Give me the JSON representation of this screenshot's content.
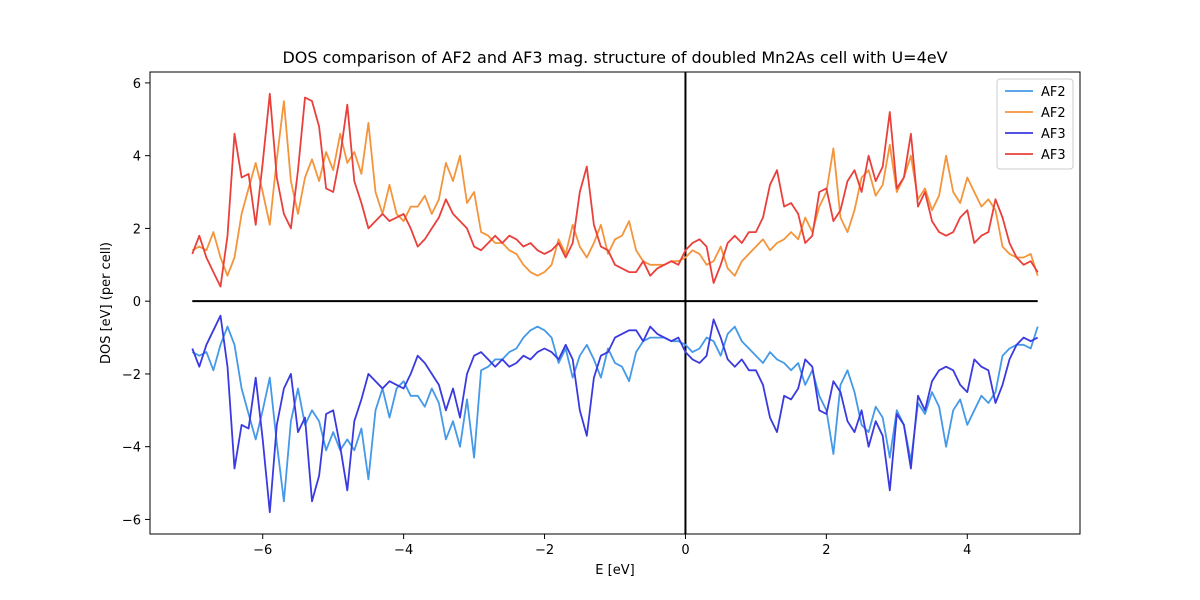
{
  "chart_data": {
    "type": "line",
    "title": "DOS comparison of AF2 and AF3 mag. structure of doubled Mn2As cell with U=4eV",
    "xlabel": "E [eV]",
    "ylabel": "DOS [eV] (per cell)",
    "xlim": [
      -7.6,
      5.6
    ],
    "ylim": [
      -6.4,
      6.3
    ],
    "xticks": [
      -6,
      -4,
      -2,
      0,
      2,
      4
    ],
    "yticks": [
      -6,
      -4,
      -2,
      0,
      2,
      4,
      6
    ],
    "xtick_labels": [
      "−6",
      "−4",
      "−2",
      "0",
      "2",
      "4"
    ],
    "ytick_labels": [
      "−6",
      "−4",
      "−2",
      "0",
      "2",
      "4",
      "6"
    ],
    "grid": false,
    "legend_position": "top-right",
    "reference_lines": {
      "horizontal_y": 0,
      "horizontal_x_range": [
        -7,
        5
      ],
      "vertical_x": 0
    },
    "series": [
      {
        "name": "AF2",
        "color": "#4499e8",
        "x": [
          -7.0,
          -6.9,
          -6.8,
          -6.7,
          -6.6,
          -6.5,
          -6.4,
          -6.3,
          -6.2,
          -6.1,
          -6.0,
          -5.9,
          -5.8,
          -5.7,
          -5.6,
          -5.5,
          -5.4,
          -5.3,
          -5.2,
          -5.1,
          -5.0,
          -4.9,
          -4.8,
          -4.7,
          -4.6,
          -4.5,
          -4.4,
          -4.3,
          -4.2,
          -4.1,
          -4.0,
          -3.9,
          -3.8,
          -3.7,
          -3.6,
          -3.5,
          -3.4,
          -3.3,
          -3.2,
          -3.1,
          -3.0,
          -2.9,
          -2.8,
          -2.7,
          -2.6,
          -2.5,
          -2.4,
          -2.3,
          -2.2,
          -2.1,
          -2.0,
          -1.9,
          -1.8,
          -1.7,
          -1.6,
          -1.5,
          -1.4,
          -1.3,
          -1.2,
          -1.1,
          -1.0,
          -0.9,
          -0.8,
          -0.7,
          -0.6,
          -0.5,
          -0.4,
          -0.3,
          -0.2,
          -0.1,
          0.0,
          0.1,
          0.2,
          0.3,
          0.4,
          0.5,
          0.6,
          0.7,
          0.8,
          0.9,
          1.0,
          1.1,
          1.2,
          1.3,
          1.4,
          1.5,
          1.6,
          1.7,
          1.8,
          1.9,
          2.0,
          2.1,
          2.2,
          2.3,
          2.4,
          2.5,
          2.6,
          2.7,
          2.8,
          2.9,
          3.0,
          3.1,
          3.2,
          3.3,
          3.4,
          3.5,
          3.6,
          3.7,
          3.8,
          3.9,
          4.0,
          4.1,
          4.2,
          4.3,
          4.4,
          4.5,
          4.6,
          4.7,
          4.8,
          4.9,
          5.0
        ],
        "y": [
          -1.4,
          -1.5,
          -1.4,
          -1.9,
          -1.2,
          -0.7,
          -1.2,
          -2.4,
          -3.1,
          -3.8,
          -3.0,
          -2.1,
          -3.9,
          -5.5,
          -3.3,
          -2.4,
          -3.4,
          -3.0,
          -3.3,
          -4.1,
          -3.6,
          -4.1,
          -3.8,
          -4.1,
          -3.5,
          -4.9,
          -3.0,
          -2.4,
          -3.2,
          -2.4,
          -2.2,
          -2.6,
          -2.6,
          -2.9,
          -2.4,
          -2.8,
          -3.8,
          -3.3,
          -4.0,
          -2.7,
          -4.3,
          -1.9,
          -1.8,
          -1.6,
          -1.6,
          -1.4,
          -1.3,
          -1.0,
          -0.8,
          -0.7,
          -0.8,
          -1.0,
          -1.7,
          -1.3,
          -2.1,
          -1.5,
          -1.2,
          -1.6,
          -2.1,
          -1.3,
          -1.7,
          -1.8,
          -2.2,
          -1.4,
          -1.1,
          -1.0,
          -1.0,
          -1.0,
          -1.1,
          -1.1,
          -1.2,
          -1.4,
          -1.3,
          -1.0,
          -1.1,
          -1.5,
          -0.9,
          -0.7,
          -1.1,
          -1.3,
          -1.5,
          -1.7,
          -1.4,
          -1.6,
          -1.7,
          -1.9,
          -1.7,
          -2.3,
          -1.9,
          -2.6,
          -3.0,
          -4.2,
          -2.3,
          -1.9,
          -2.5,
          -3.4,
          -3.6,
          -2.9,
          -3.2,
          -4.3,
          -3.0,
          -3.4,
          -4.4,
          -2.8,
          -3.1,
          -2.5,
          -2.9,
          -4.0,
          -3.0,
          -2.7,
          -3.4,
          -3.0,
          -2.6,
          -2.8,
          -2.5,
          -1.5,
          -1.3,
          -1.2,
          -1.2,
          -1.3,
          -0.7
        ]
      },
      {
        "name": "AF2",
        "color": "#f4953c",
        "x": [
          -7.0,
          -6.9,
          -6.8,
          -6.7,
          -6.6,
          -6.5,
          -6.4,
          -6.3,
          -6.2,
          -6.1,
          -6.0,
          -5.9,
          -5.8,
          -5.7,
          -5.6,
          -5.5,
          -5.4,
          -5.3,
          -5.2,
          -5.1,
          -5.0,
          -4.9,
          -4.8,
          -4.7,
          -4.6,
          -4.5,
          -4.4,
          -4.3,
          -4.2,
          -4.1,
          -4.0,
          -3.9,
          -3.8,
          -3.7,
          -3.6,
          -3.5,
          -3.4,
          -3.3,
          -3.2,
          -3.1,
          -3.0,
          -2.9,
          -2.8,
          -2.7,
          -2.6,
          -2.5,
          -2.4,
          -2.3,
          -2.2,
          -2.1,
          -2.0,
          -1.9,
          -1.8,
          -1.7,
          -1.6,
          -1.5,
          -1.4,
          -1.3,
          -1.2,
          -1.1,
          -1.0,
          -0.9,
          -0.8,
          -0.7,
          -0.6,
          -0.5,
          -0.4,
          -0.3,
          -0.2,
          -0.1,
          0.0,
          0.1,
          0.2,
          0.3,
          0.4,
          0.5,
          0.6,
          0.7,
          0.8,
          0.9,
          1.0,
          1.1,
          1.2,
          1.3,
          1.4,
          1.5,
          1.6,
          1.7,
          1.8,
          1.9,
          2.0,
          2.1,
          2.2,
          2.3,
          2.4,
          2.5,
          2.6,
          2.7,
          2.8,
          2.9,
          3.0,
          3.1,
          3.2,
          3.3,
          3.4,
          3.5,
          3.6,
          3.7,
          3.8,
          3.9,
          4.0,
          4.1,
          4.2,
          4.3,
          4.4,
          4.5,
          4.6,
          4.7,
          4.8,
          4.9,
          5.0
        ],
        "y": [
          1.4,
          1.5,
          1.4,
          1.9,
          1.2,
          0.7,
          1.2,
          2.4,
          3.1,
          3.8,
          3.0,
          2.1,
          3.9,
          5.5,
          3.3,
          2.4,
          3.4,
          3.9,
          3.3,
          4.1,
          3.6,
          4.6,
          3.8,
          4.1,
          3.5,
          4.9,
          3.0,
          2.4,
          3.2,
          2.4,
          2.2,
          2.6,
          2.6,
          2.9,
          2.4,
          2.8,
          3.8,
          3.3,
          4.0,
          2.7,
          3.0,
          1.9,
          1.8,
          1.6,
          1.6,
          1.4,
          1.3,
          1.0,
          0.8,
          0.7,
          0.8,
          1.0,
          1.7,
          1.3,
          2.1,
          1.5,
          1.2,
          1.6,
          2.1,
          1.3,
          1.7,
          1.8,
          2.2,
          1.4,
          1.1,
          1.0,
          1.0,
          1.0,
          1.1,
          1.1,
          1.2,
          1.4,
          1.3,
          1.0,
          1.1,
          1.5,
          0.9,
          0.7,
          1.1,
          1.3,
          1.5,
          1.7,
          1.4,
          1.6,
          1.7,
          1.9,
          1.7,
          2.3,
          1.9,
          2.6,
          3.0,
          4.2,
          2.3,
          1.9,
          2.5,
          3.4,
          3.6,
          2.9,
          3.2,
          4.3,
          3.0,
          3.4,
          4.0,
          2.8,
          3.1,
          2.5,
          2.9,
          4.0,
          3.0,
          2.7,
          3.4,
          3.0,
          2.6,
          2.8,
          2.5,
          1.5,
          1.3,
          1.2,
          1.2,
          1.3,
          0.7
        ]
      },
      {
        "name": "AF3",
        "color": "#3a3ae0",
        "x": [
          -7.0,
          -6.9,
          -6.8,
          -6.7,
          -6.6,
          -6.5,
          -6.4,
          -6.3,
          -6.2,
          -6.1,
          -6.0,
          -5.9,
          -5.8,
          -5.7,
          -5.6,
          -5.5,
          -5.4,
          -5.3,
          -5.2,
          -5.1,
          -5.0,
          -4.9,
          -4.8,
          -4.7,
          -4.6,
          -4.5,
          -4.4,
          -4.3,
          -4.2,
          -4.1,
          -4.0,
          -3.9,
          -3.8,
          -3.7,
          -3.6,
          -3.5,
          -3.4,
          -3.3,
          -3.2,
          -3.1,
          -3.0,
          -2.9,
          -2.8,
          -2.7,
          -2.6,
          -2.5,
          -2.4,
          -2.3,
          -2.2,
          -2.1,
          -2.0,
          -1.9,
          -1.8,
          -1.7,
          -1.6,
          -1.5,
          -1.4,
          -1.3,
          -1.2,
          -1.1,
          -1.0,
          -0.9,
          -0.8,
          -0.7,
          -0.6,
          -0.5,
          -0.4,
          -0.3,
          -0.2,
          -0.1,
          0.0,
          0.1,
          0.2,
          0.3,
          0.4,
          0.5,
          0.6,
          0.7,
          0.8,
          0.9,
          1.0,
          1.1,
          1.2,
          1.3,
          1.4,
          1.5,
          1.6,
          1.7,
          1.8,
          1.9,
          2.0,
          2.1,
          2.2,
          2.3,
          2.4,
          2.5,
          2.6,
          2.7,
          2.8,
          2.9,
          3.0,
          3.1,
          3.2,
          3.3,
          3.4,
          3.5,
          3.6,
          3.7,
          3.8,
          3.9,
          4.0,
          4.1,
          4.2,
          4.3,
          4.4,
          4.5,
          4.6,
          4.7,
          4.8,
          4.9,
          5.0
        ],
        "y": [
          -1.3,
          -1.8,
          -1.2,
          -0.8,
          -0.4,
          -1.8,
          -4.6,
          -3.4,
          -3.5,
          -2.1,
          -3.8,
          -5.8,
          -3.4,
          -2.4,
          -2.0,
          -3.6,
          -3.2,
          -5.5,
          -4.8,
          -3.1,
          -3.0,
          -4.0,
          -5.2,
          -3.3,
          -2.7,
          -2.0,
          -2.2,
          -2.4,
          -2.2,
          -2.3,
          -2.4,
          -2.0,
          -1.5,
          -1.7,
          -2.0,
          -2.3,
          -3.0,
          -2.4,
          -3.2,
          -2.0,
          -1.5,
          -1.4,
          -1.6,
          -1.8,
          -1.6,
          -1.8,
          -1.7,
          -1.5,
          -1.6,
          -1.4,
          -1.3,
          -1.4,
          -1.6,
          -1.2,
          -1.6,
          -3.0,
          -3.7,
          -2.1,
          -1.5,
          -1.4,
          -1.0,
          -0.9,
          -0.8,
          -0.8,
          -1.1,
          -0.7,
          -0.9,
          -1.0,
          -1.1,
          -1.0,
          -1.4,
          -1.6,
          -1.7,
          -1.5,
          -0.5,
          -1.0,
          -1.6,
          -1.8,
          -1.6,
          -1.9,
          -1.9,
          -2.3,
          -3.2,
          -3.6,
          -2.6,
          -2.7,
          -2.4,
          -1.6,
          -1.8,
          -3.0,
          -3.1,
          -2.2,
          -2.5,
          -3.3,
          -3.6,
          -3.0,
          -4.0,
          -3.3,
          -3.7,
          -5.2,
          -3.1,
          -3.4,
          -4.6,
          -2.6,
          -3.0,
          -2.2,
          -1.9,
          -1.8,
          -1.9,
          -2.3,
          -2.5,
          -1.6,
          -1.8,
          -1.9,
          -2.8,
          -2.3,
          -1.6,
          -1.2,
          -1.0,
          -1.1,
          -1.0
        ]
      },
      {
        "name": "AF3",
        "color": "#e9403c",
        "x": [
          -7.0,
          -6.9,
          -6.8,
          -6.7,
          -6.6,
          -6.5,
          -6.4,
          -6.3,
          -6.2,
          -6.1,
          -6.0,
          -5.9,
          -5.8,
          -5.7,
          -5.6,
          -5.5,
          -5.4,
          -5.3,
          -5.2,
          -5.1,
          -5.0,
          -4.9,
          -4.8,
          -4.7,
          -4.6,
          -4.5,
          -4.4,
          -4.3,
          -4.2,
          -4.1,
          -4.0,
          -3.9,
          -3.8,
          -3.7,
          -3.6,
          -3.5,
          -3.4,
          -3.3,
          -3.2,
          -3.1,
          -3.0,
          -2.9,
          -2.8,
          -2.7,
          -2.6,
          -2.5,
          -2.4,
          -2.3,
          -2.2,
          -2.1,
          -2.0,
          -1.9,
          -1.8,
          -1.7,
          -1.6,
          -1.5,
          -1.4,
          -1.3,
          -1.2,
          -1.1,
          -1.0,
          -0.9,
          -0.8,
          -0.7,
          -0.6,
          -0.5,
          -0.4,
          -0.3,
          -0.2,
          -0.1,
          0.0,
          0.1,
          0.2,
          0.3,
          0.4,
          0.5,
          0.6,
          0.7,
          0.8,
          0.9,
          1.0,
          1.1,
          1.2,
          1.3,
          1.4,
          1.5,
          1.6,
          1.7,
          1.8,
          1.9,
          2.0,
          2.1,
          2.2,
          2.3,
          2.4,
          2.5,
          2.6,
          2.7,
          2.8,
          2.9,
          3.0,
          3.1,
          3.2,
          3.3,
          3.4,
          3.5,
          3.6,
          3.7,
          3.8,
          3.9,
          4.0,
          4.1,
          4.2,
          4.3,
          4.4,
          4.5,
          4.6,
          4.7,
          4.8,
          4.9,
          5.0
        ],
        "y": [
          1.3,
          1.8,
          1.2,
          0.8,
          0.4,
          1.8,
          4.6,
          3.4,
          3.5,
          2.1,
          3.8,
          5.7,
          3.4,
          2.4,
          2.0,
          3.6,
          5.6,
          5.5,
          4.8,
          3.1,
          3.0,
          4.0,
          5.4,
          3.3,
          2.7,
          2.0,
          2.2,
          2.4,
          2.2,
          2.3,
          2.4,
          2.0,
          1.5,
          1.7,
          2.0,
          2.3,
          2.8,
          2.4,
          2.2,
          2.0,
          1.5,
          1.4,
          1.6,
          1.8,
          1.6,
          1.8,
          1.7,
          1.5,
          1.6,
          1.4,
          1.3,
          1.4,
          1.6,
          1.2,
          1.6,
          3.0,
          3.7,
          2.1,
          1.5,
          1.4,
          1.0,
          0.9,
          0.8,
          0.8,
          1.1,
          0.7,
          0.9,
          1.0,
          1.1,
          1.0,
          1.4,
          1.6,
          1.7,
          1.5,
          0.5,
          1.0,
          1.6,
          1.8,
          1.6,
          1.9,
          1.9,
          2.3,
          3.2,
          3.6,
          2.6,
          2.7,
          2.4,
          1.6,
          1.8,
          3.0,
          3.1,
          2.2,
          2.5,
          3.3,
          3.6,
          3.0,
          4.0,
          3.3,
          3.7,
          5.2,
          3.1,
          3.4,
          4.6,
          2.6,
          3.0,
          2.2,
          1.9,
          1.8,
          1.9,
          2.3,
          2.5,
          1.6,
          1.8,
          1.9,
          2.8,
          2.3,
          1.6,
          1.2,
          1.0,
          1.1,
          0.8
        ]
      }
    ]
  }
}
